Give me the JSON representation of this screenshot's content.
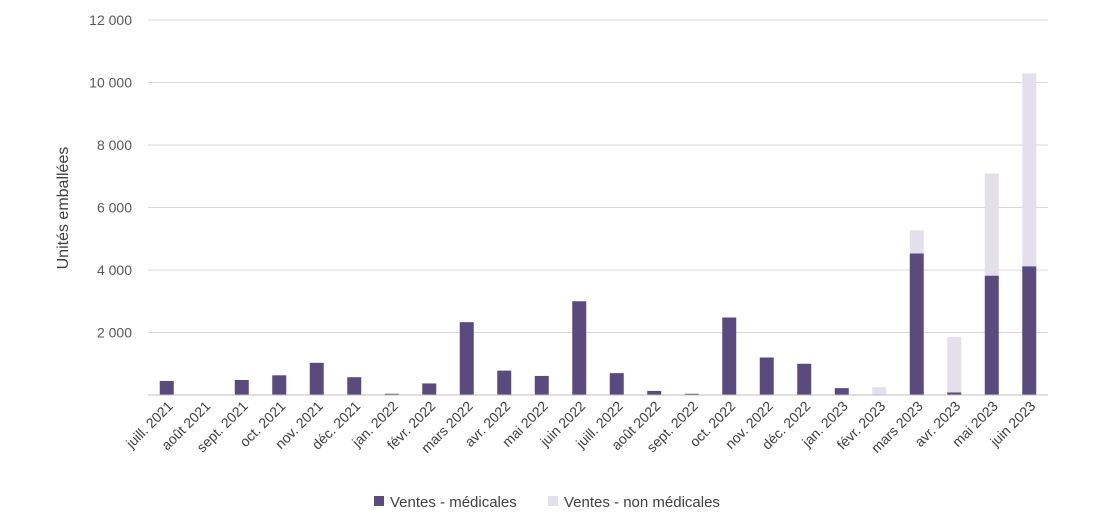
{
  "chart_data": {
    "type": "bar",
    "stacked": true,
    "ylabel": "Unités emballées",
    "xlabel": "",
    "ylim": [
      0,
      12000
    ],
    "yticks": [
      2000,
      4000,
      6000,
      8000,
      10000,
      12000
    ],
    "ytick_labels": [
      "2 000",
      "4 000",
      "6 000",
      "8 000",
      "10 000",
      "12 000"
    ],
    "grid": true,
    "legend_position": "bottom",
    "categories": [
      "juill. 2021",
      "août 2021",
      "sept. 2021",
      "oct. 2021",
      "nov. 2021",
      "déc. 2021",
      "jan. 2022",
      "févr. 2022",
      "mars 2022",
      "avr. 2022",
      "mai 2022",
      "juin 2022",
      "juill. 2022",
      "août 2022",
      "sept. 2022",
      "oct. 2022",
      "nov. 2022",
      "déc. 2022",
      "jan. 2023",
      "févr. 2023",
      "mars 2023",
      "avr. 2023",
      "mai 2023",
      "juin 2023"
    ],
    "series": [
      {
        "name": "Ventes - médicales",
        "color": "#5b4a7d",
        "values": [
          450,
          0,
          480,
          630,
          1030,
          570,
          40,
          370,
          2330,
          780,
          610,
          3000,
          700,
          130,
          40,
          2480,
          1200,
          1000,
          220,
          0,
          4530,
          80,
          3820,
          4120
        ]
      },
      {
        "name": "Ventes - non médicales",
        "color": "#e3dfeb",
        "values": [
          0,
          0,
          0,
          0,
          0,
          0,
          0,
          0,
          0,
          0,
          0,
          0,
          0,
          0,
          0,
          0,
          0,
          0,
          0,
          250,
          740,
          1780,
          3270,
          6170
        ]
      }
    ]
  }
}
